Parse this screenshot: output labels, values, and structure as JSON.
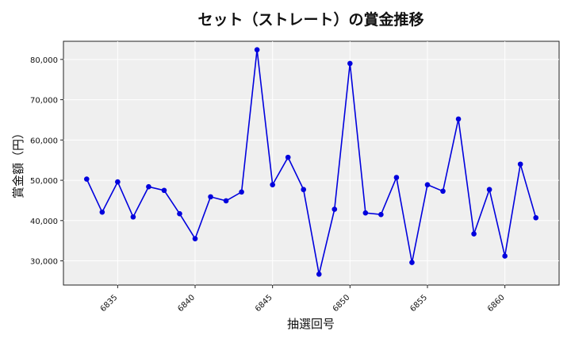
{
  "chart_data": {
    "type": "line",
    "title": "セット（ストレート）の賞金推移",
    "xlabel": "抽選回号",
    "ylabel": "賞金額（円）",
    "x": [
      6833,
      6834,
      6835,
      6836,
      6837,
      6838,
      6839,
      6840,
      6841,
      6842,
      6843,
      6844,
      6845,
      6846,
      6847,
      6848,
      6849,
      6850,
      6851,
      6852,
      6853,
      6854,
      6855,
      6856,
      6857,
      6858,
      6859,
      6860,
      6861,
      6862
    ],
    "series": [
      {
        "name": "賞金額",
        "color": "#0000dd",
        "values": [
          50300,
          42100,
          49600,
          40900,
          48400,
          47500,
          41700,
          35500,
          45900,
          44900,
          47100,
          82400,
          48900,
          55700,
          47700,
          26700,
          42800,
          79000,
          41900,
          41500,
          50700,
          29600,
          48900,
          47300,
          65200,
          36700,
          47700,
          31200,
          54000,
          40700
        ]
      }
    ],
    "xticks": [
      6835,
      6840,
      6845,
      6850,
      6855,
      6860
    ],
    "yticks": [
      30000,
      40000,
      50000,
      60000,
      70000,
      80000
    ],
    "ytick_labels": [
      "30,000",
      "40,000",
      "50,000",
      "60,000",
      "70,000",
      "80,000"
    ],
    "xlim": [
      6831.5,
      6863.5
    ],
    "ylim": [
      24000,
      84500
    ],
    "grid": true,
    "legend": null,
    "background": "#efefef"
  }
}
